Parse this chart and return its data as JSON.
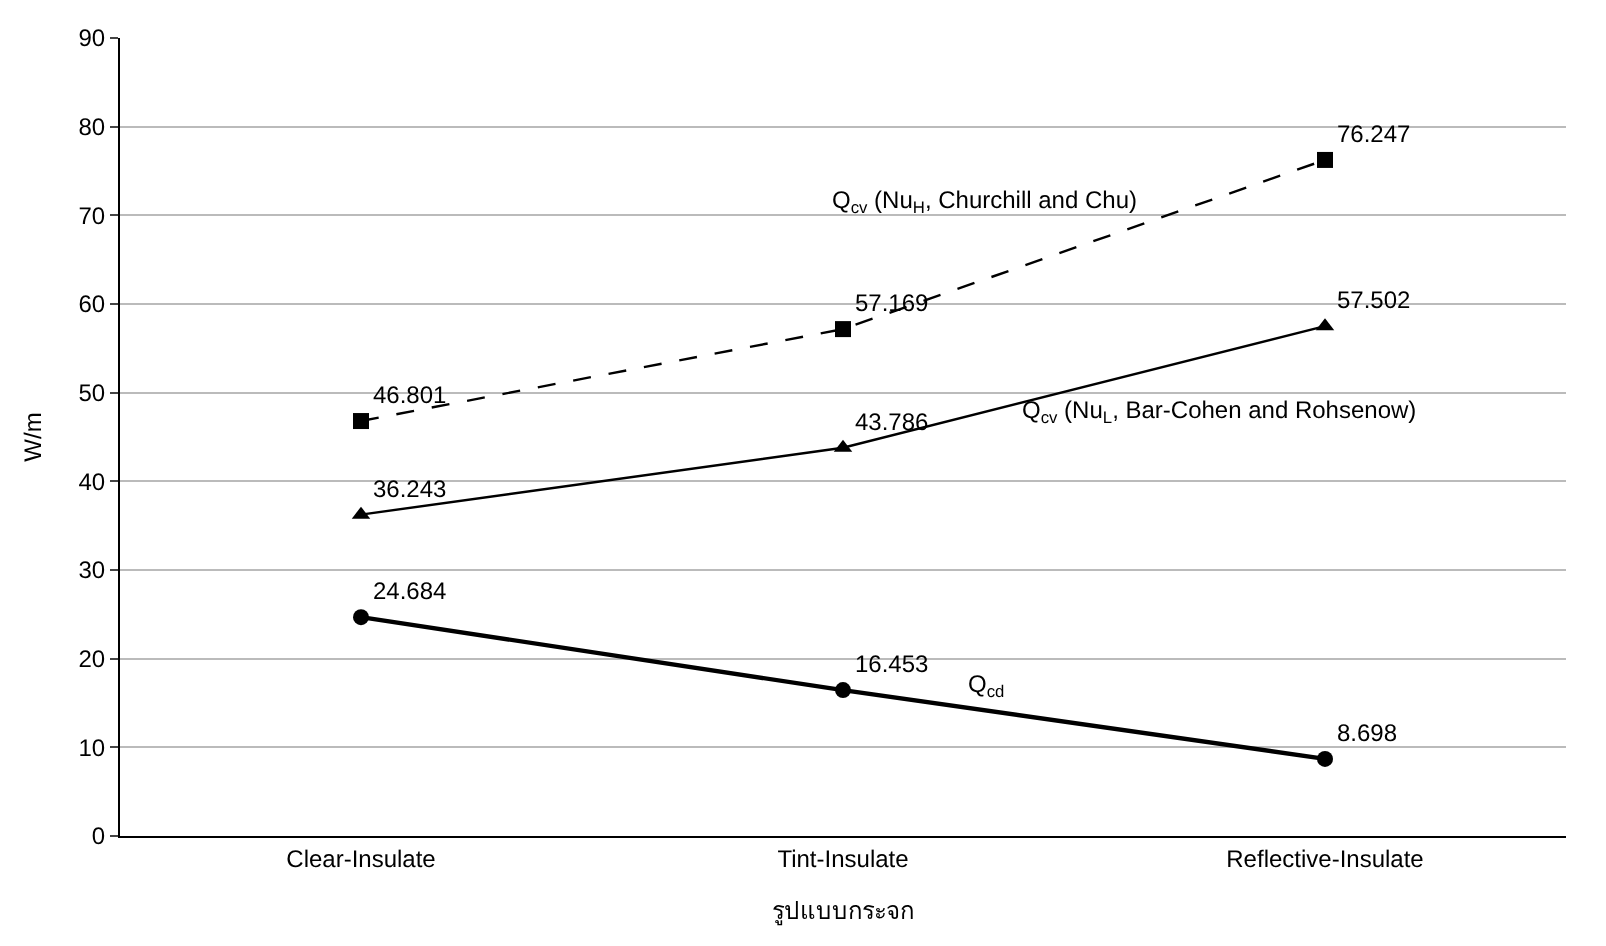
{
  "chart_data": {
    "type": "line",
    "xlabel": "รูปแบบกระจก",
    "ylabel": "W/m",
    "categories": [
      "Clear-Insulate",
      "Tint-Insulate",
      "Reflective-Insulate"
    ],
    "series": [
      {
        "name": "Q$_{cv}$ (Nu$_{H}$, Churchill and Chu)",
        "color": "#000000",
        "values": [
          46.801,
          57.169,
          76.247
        ],
        "marker": "square",
        "line_style": "dashed"
      },
      {
        "name": "Q$_{cv}$ (Nu$_{L}$, Bar-Cohen and Rohsenow)",
        "color": "#000000",
        "values": [
          36.243,
          43.786,
          57.502
        ],
        "marker": "triangle",
        "line_style": "solid"
      },
      {
        "name": "Q$_{cd}$",
        "color": "#000000",
        "values": [
          24.684,
          16.453,
          8.698
        ],
        "marker": "circle",
        "line_style": "solid"
      }
    ],
    "ylim": [
      0,
      90
    ],
    "yticks": [
      0,
      10,
      20,
      30,
      40,
      50,
      60,
      70,
      80,
      90
    ],
    "grid": "y",
    "legend": false,
    "data_labels": true
  }
}
